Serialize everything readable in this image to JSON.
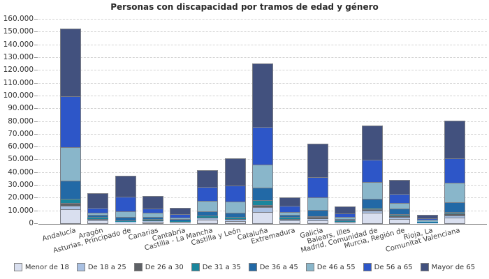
{
  "chart_data": {
    "type": "bar",
    "stacked": true,
    "title": "Personas con discapacidad por tramos de edad y género",
    "categories": [
      "Andalucía",
      "Aragón",
      "Asturias, Principado de",
      "Canarias",
      "Cantabria",
      "Castilla - La Mancha",
      "Castilla y León",
      "Cataluña",
      "Extremadura",
      "Galicia",
      "Balears, Illes",
      "Madrid, Comunidad de",
      "Murcia, Región de",
      "Rioja, La",
      "Comunitat Valenciana"
    ],
    "series": [
      {
        "name": "Menor de 18",
        "color": "#d9dfef",
        "values": [
          11500,
          2600,
          1200,
          1400,
          900,
          3200,
          2400,
          9500,
          2500,
          2700,
          900,
          8800,
          3800,
          400,
          5100
        ]
      },
      {
        "name": "De 18 a 25",
        "color": "#a9c0e2",
        "values": [
          3300,
          900,
          400,
          1000,
          400,
          1100,
          900,
          4200,
          900,
          1100,
          400,
          2200,
          1100,
          150,
          1800
        ]
      },
      {
        "name": "De 26 a 30",
        "color": "#5e6166",
        "values": [
          2700,
          500,
          300,
          300,
          300,
          700,
          600,
          2400,
          500,
          900,
          300,
          1600,
          1300,
          150,
          1300
        ]
      },
      {
        "name": "De 31 a 35",
        "color": "#1a869d",
        "values": [
          3800,
          700,
          400,
          400,
          500,
          1300,
          1300,
          4200,
          800,
          1400,
          600,
          1600,
          1600,
          300,
          1500
        ]
      },
      {
        "name": "De 36 a 45",
        "color": "#2269a6",
        "values": [
          14800,
          2200,
          3300,
          2600,
          1200,
          3500,
          3800,
          10400,
          2200,
          5600,
          1400,
          7700,
          4600,
          700,
          8200
        ]
      },
      {
        "name": "De 46 a 55",
        "color": "#89b6ca",
        "values": [
          26900,
          2500,
          5000,
          3500,
          1800,
          8800,
          8800,
          18600,
          3100,
          10400,
          2300,
          13700,
          5300,
          1100,
          15900
        ]
      },
      {
        "name": "De 56 a 65",
        "color": "#2d56c8",
        "values": [
          40200,
          4200,
          11800,
          3800,
          2900,
          11500,
          13200,
          30100,
          5300,
          16400,
          3400,
          17700,
          7500,
          1700,
          19700
        ]
      },
      {
        "name": "Mayor de 65",
        "color": "#42517e",
        "values": [
          53500,
          12100,
          17000,
          10300,
          5600,
          13500,
          21900,
          49900,
          7000,
          26500,
          5900,
          27600,
          11500,
          3000,
          30100
        ]
      }
    ],
    "y_axis": {
      "min": 0,
      "max": 160000,
      "step": 10000,
      "tick_labels": [
        "0",
        "10.000",
        "20.000",
        "30.000",
        "40.000",
        "50.000",
        "60.000",
        "70.000",
        "80.000",
        "90.000",
        "100.000",
        "110.000",
        "120.000",
        "130.000",
        "140.000",
        "150.000",
        "160.000"
      ]
    },
    "legend_position": "bottom",
    "grid": "horizontal-dashed",
    "colors": {
      "axis_line": "#7a7a7a",
      "grid_line": "#d2d2d2",
      "tick_text": "#333333",
      "bar_border": "#7b7e86",
      "title_text": "#2b2b2b",
      "background": "#ffffff"
    }
  }
}
